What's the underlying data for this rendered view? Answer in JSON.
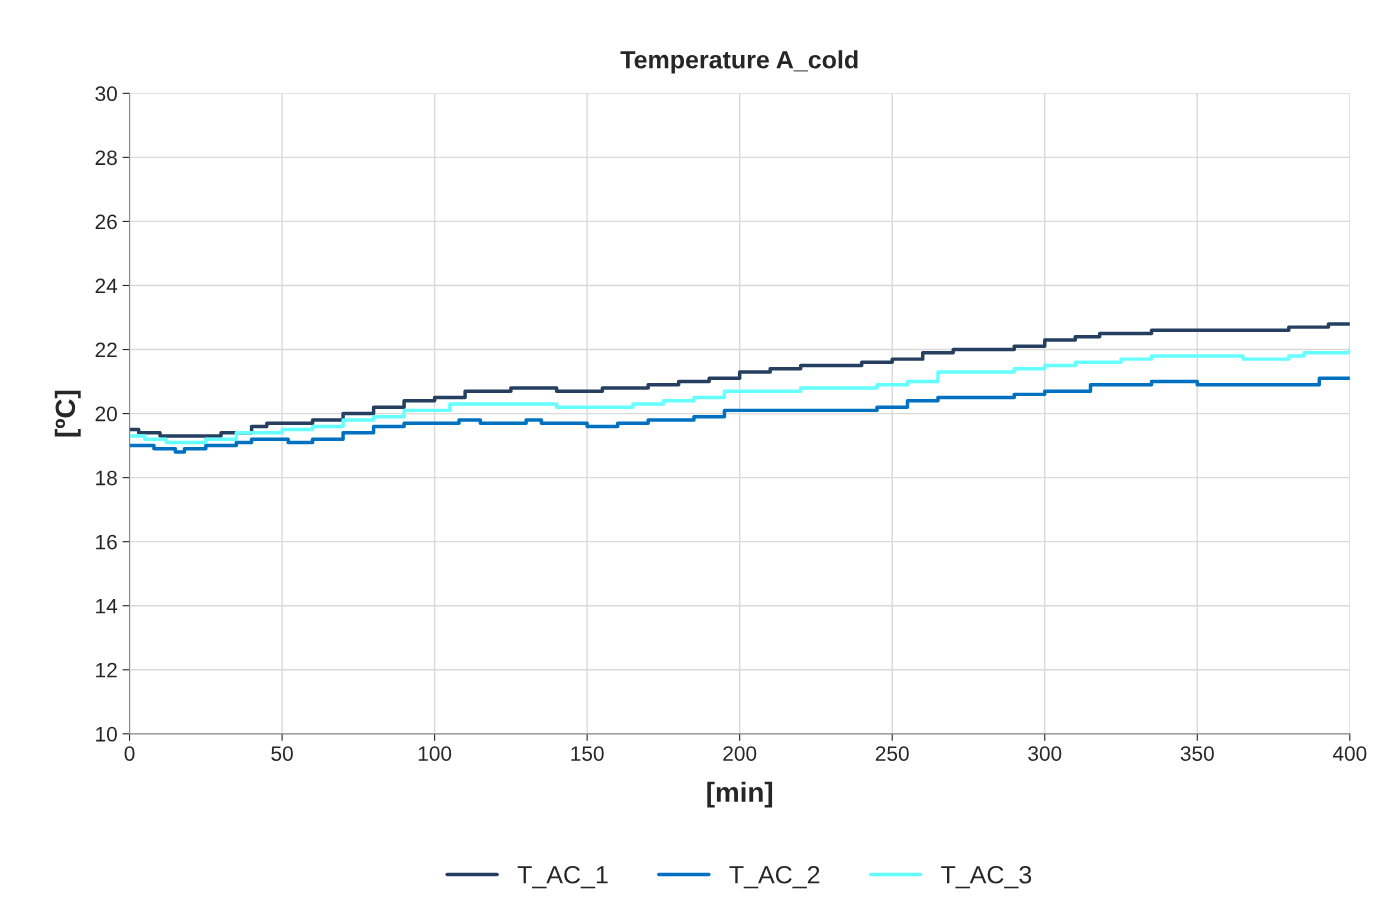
{
  "chart_data": {
    "type": "step",
    "title": "Temperature A_cold",
    "xlabel": "[min]",
    "ylabel": "[ºC]",
    "xlim": [
      0,
      400
    ],
    "xticks": [
      0,
      50,
      100,
      150,
      200,
      250,
      300,
      350,
      400
    ],
    "ylim": [
      10,
      30
    ],
    "yticks": [
      10,
      12,
      14,
      16,
      18,
      20,
      22,
      24,
      26,
      28,
      30
    ],
    "grid": true,
    "legend": "bottom",
    "marker": "none",
    "line_style": "solid",
    "series": [
      {
        "name": "T_AC_1",
        "color": "#243f60",
        "x": [
          0,
          3,
          10,
          20,
          30,
          40,
          45,
          55,
          60,
          70,
          80,
          90,
          100,
          110,
          125,
          140,
          155,
          170,
          180,
          190,
          200,
          210,
          220,
          240,
          250,
          260,
          270,
          290,
          300,
          310,
          318,
          335,
          380,
          393,
          400
        ],
        "values": [
          19.5,
          19.4,
          19.3,
          19.3,
          19.4,
          19.6,
          19.7,
          19.7,
          19.8,
          20.0,
          20.2,
          20.4,
          20.5,
          20.7,
          20.8,
          20.7,
          20.8,
          20.9,
          21.0,
          21.1,
          21.3,
          21.4,
          21.5,
          21.6,
          21.7,
          21.9,
          22.0,
          22.1,
          22.3,
          22.4,
          22.5,
          22.6,
          22.7,
          22.8,
          22.8
        ]
      },
      {
        "name": "T_AC_2",
        "color": "#0070c0",
        "x": [
          0,
          8,
          15,
          18,
          25,
          35,
          40,
          52,
          60,
          70,
          80,
          90,
          100,
          108,
          115,
          130,
          135,
          150,
          160,
          170,
          185,
          195,
          230,
          245,
          255,
          265,
          270,
          290,
          300,
          315,
          335,
          350,
          380,
          390,
          400
        ],
        "values": [
          19.0,
          18.9,
          18.8,
          18.9,
          19.0,
          19.1,
          19.2,
          19.1,
          19.2,
          19.4,
          19.6,
          19.7,
          19.7,
          19.8,
          19.7,
          19.8,
          19.7,
          19.6,
          19.7,
          19.8,
          19.9,
          20.1,
          20.1,
          20.2,
          20.4,
          20.5,
          20.5,
          20.6,
          20.7,
          20.9,
          21.0,
          20.9,
          20.9,
          21.1,
          21.1
        ]
      },
      {
        "name": "T_AC_3",
        "color": "#66ffff",
        "x": [
          0,
          5,
          12,
          25,
          35,
          50,
          60,
          70,
          80,
          90,
          105,
          115,
          130,
          140,
          165,
          175,
          185,
          195,
          220,
          245,
          255,
          265,
          280,
          290,
          300,
          310,
          325,
          335,
          355,
          365,
          380,
          385,
          400
        ],
        "values": [
          19.3,
          19.2,
          19.1,
          19.2,
          19.4,
          19.5,
          19.6,
          19.8,
          19.9,
          20.1,
          20.3,
          20.3,
          20.3,
          20.2,
          20.3,
          20.4,
          20.5,
          20.7,
          20.8,
          20.9,
          21.0,
          21.3,
          21.3,
          21.4,
          21.5,
          21.6,
          21.7,
          21.8,
          21.8,
          21.7,
          21.8,
          21.9,
          22.0
        ]
      }
    ]
  }
}
